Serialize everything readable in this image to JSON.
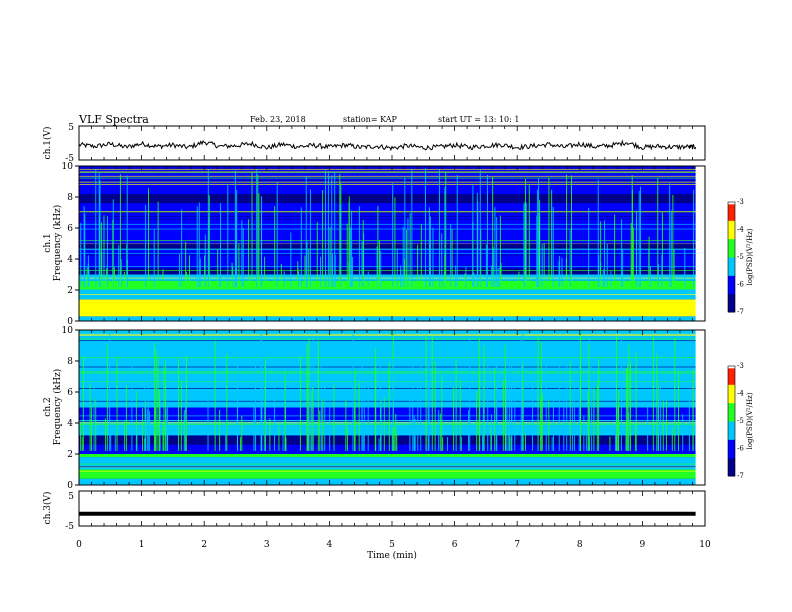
{
  "header": {
    "title": "VLF Spectra",
    "date": "Feb. 23, 2018",
    "station": "station= KAP",
    "start": "start  UT =   13: 10: 1"
  },
  "chart_data": [
    {
      "type": "line",
      "panel": "ch1-waveform",
      "ylabel": "ch.1(V)",
      "ylim": [
        -5,
        5
      ],
      "yticks": [
        "5",
        "-5"
      ],
      "xlim": [
        0,
        10
      ],
      "description_values": "waveform fluctuating around -1 V with amplitude about ±1.5 V",
      "x": [
        0,
        0.25,
        0.5,
        0.75,
        1,
        1.25,
        1.5,
        1.75,
        2,
        2.25,
        2.5,
        2.75,
        3,
        3.25,
        3.5,
        3.75,
        4,
        4.25,
        4.5,
        4.75,
        5,
        5.25,
        5.5,
        5.75,
        6,
        6.25,
        6.5,
        6.75,
        7,
        7.25,
        7.5,
        7.75,
        8,
        8.25,
        8.5,
        8.75,
        9,
        9.25,
        9.5,
        9.75,
        9.85
      ],
      "y": [
        -0.5,
        -1,
        -0.3,
        -1.2,
        -0.2,
        -1,
        -0.6,
        -1.3,
        0.3,
        -1,
        -0.8,
        -0.2,
        -1.4,
        -0.4,
        -1.1,
        -0.7,
        -1.2,
        -0.6,
        -1.3,
        -0.9,
        -1.5,
        -0.8,
        -1.4,
        -1.2,
        -0.6,
        -1.3,
        -0.8,
        -0.5,
        -1.3,
        -0.9,
        -0.4,
        -1.2,
        -0.3,
        -1.1,
        -0.7,
        0.2,
        -1.3,
        -1,
        -1.2,
        -1.1,
        -1.2
      ]
    },
    {
      "type": "heatmap",
      "panel": "ch1-spectrogram",
      "ylabel_top": "ch.1",
      "ylabel": "Frequency  (kHz)",
      "ylim": [
        0,
        10
      ],
      "yticks": [
        "0",
        "2",
        "4",
        "6",
        "8",
        "10"
      ],
      "xlim": [
        0,
        10
      ],
      "colorbar": {
        "label": "log(PSD)(V²/Hz)",
        "range": [
          -7,
          -3
        ],
        "ticks": [
          "-3",
          "-4",
          "-5",
          "-6",
          "-7"
        ]
      }
    },
    {
      "type": "heatmap",
      "panel": "ch2-spectrogram",
      "ylabel_top": "ch.2",
      "ylabel": "Frequency  (kHz)",
      "ylim": [
        0,
        10
      ],
      "yticks": [
        "0",
        "2",
        "4",
        "6",
        "8",
        "10"
      ],
      "xlim": [
        0,
        10
      ],
      "colorbar": {
        "label": "log(PSD)(V²/Hz)",
        "range": [
          -7,
          -3
        ],
        "ticks": [
          "-3",
          "-4",
          "-5",
          "-6",
          "-7"
        ]
      }
    },
    {
      "type": "line",
      "panel": "ch3-waveform",
      "ylabel": "ch.3(V)",
      "ylim": [
        -5,
        5
      ],
      "yticks": [
        "5",
        "-5"
      ],
      "xlim": [
        0,
        10
      ],
      "x": [
        0,
        9.85
      ],
      "y": [
        -1.5,
        -1.5
      ]
    }
  ],
  "xaxis": {
    "label": "Time  (min)",
    "ticks": [
      "0",
      "1",
      "2",
      "3",
      "4",
      "5",
      "6",
      "7",
      "8",
      "9",
      "10"
    ]
  },
  "colors": {
    "deep_blue": "#00008b",
    "blue": "#0000ff",
    "cyan": "#00c8ff",
    "green": "#22ff22",
    "yellow": "#ffff00",
    "red": "#ff2200"
  }
}
